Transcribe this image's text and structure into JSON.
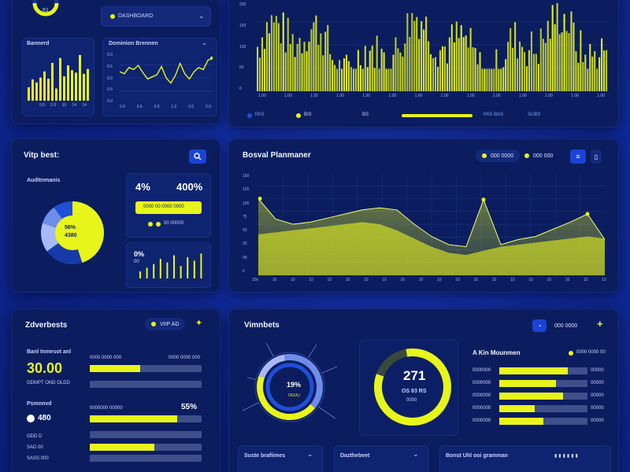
{
  "colors": {
    "accent": "#e8f51a",
    "panel": "#0b1d5e",
    "card": "#0e2470",
    "track": "#3e4f8a"
  },
  "top_left": {
    "gauge_value": "61",
    "dropdown_label": "DASHBOARD",
    "bar_card_title": "Bannerd",
    "bar_values": [
      22,
      35,
      30,
      38,
      48,
      36,
      62,
      20,
      70,
      40,
      58,
      50,
      46,
      75,
      44,
      52
    ],
    "bar_axis": [
      "0.0",
      "0.0",
      "10",
      "14",
      "14"
    ],
    "line_card_title": "Dominion Brennen",
    "line_axis_y": [
      "0.0",
      "0.5",
      "0.0",
      "0.5",
      "0.0"
    ],
    "line_axis_x": [
      "0.0",
      "0.5",
      "0.0",
      "1.0",
      "0.0",
      "0.0"
    ],
    "line_values": [
      62,
      58,
      70,
      66,
      74,
      60,
      48,
      52,
      56,
      72,
      50,
      40,
      55,
      78,
      58,
      48,
      62,
      70,
      66,
      84,
      88
    ]
  },
  "top_right": {
    "y_ticks": [
      "200",
      "150",
      "100",
      "50",
      "0"
    ],
    "x_ticks": [
      "1.00",
      "1.00",
      "1.00",
      "1.00",
      "1.00",
      "1.00",
      "1.00",
      "1.00",
      "1.00",
      "1.00",
      "1.00",
      "1.00",
      "1.00",
      "1.00"
    ],
    "footer_left": "PAS",
    "footer_mid_a": "BIS",
    "footer_mid_b": "BS",
    "footer_right": "PAS BAS",
    "footer_far_right": "SUBS"
  },
  "mid_left": {
    "title": "Vitp best:",
    "donut_title": "Auditnmanis",
    "donut_center_a": "56%",
    "donut_center_b": "4380",
    "donut_segments": [
      {
        "value": 45,
        "color": "#e8f51a"
      },
      {
        "value": 20,
        "color": "#163ba8"
      },
      {
        "value": 15,
        "color": "#a9b9f5"
      },
      {
        "value": 10,
        "color": "#6e8de8"
      },
      {
        "value": 10,
        "color": "#1f4fd9"
      }
    ],
    "stat_pct": "4%",
    "stat_value": "400%",
    "stat_bar_label": "0000 00 0000 0000",
    "stat_legend": "00 00000",
    "small_pct": "0%",
    "small_sub": "00",
    "small_bars": [
      8,
      12,
      16,
      22,
      18,
      26,
      14,
      24,
      20,
      28
    ]
  },
  "mid_right": {
    "title": "Bosval Planmaner",
    "chip_a": "000 0000",
    "chip_b": "000 000",
    "y_ticks": [
      "150",
      "125",
      "100",
      "75",
      "50",
      "25",
      "00",
      "0"
    ],
    "x_ticks": [
      "20s",
      "10",
      "10",
      "10",
      "10",
      "10",
      "10",
      "10",
      "10",
      "10",
      "10",
      "10",
      "10",
      "10",
      "10",
      "10",
      "10",
      "10",
      "10",
      "10"
    ],
    "series_a": [
      75,
      55,
      50,
      52,
      56,
      60,
      64,
      66,
      64,
      50,
      38,
      30,
      28,
      74,
      30,
      35,
      38,
      45,
      52,
      60,
      35
    ],
    "series_b": [
      40,
      42,
      44,
      46,
      48,
      50,
      52,
      50,
      44,
      36,
      28,
      22,
      20,
      24,
      28,
      30,
      32,
      34,
      36,
      38,
      36
    ]
  },
  "bottom_left": {
    "title": "Zdverbests",
    "badge": "VIIP AD",
    "label_1": "Banl Inmesot anl",
    "value_1": "30.00",
    "sub_1": "ODMPT OND OLDD",
    "bar_1a_label": "0000 0000 000",
    "bar_1b_label": "0000 0000 000",
    "label_2": "Psmnnvd",
    "value_2": "480",
    "bar_2_label": "0000000 00000",
    "pct_2": "55%",
    "bars": [
      {
        "fill": 0.45
      },
      {
        "fill": 0.0
      },
      {
        "fill": 0.78
      },
      {
        "fill": 0.0
      },
      {
        "fill": 0.58
      },
      {
        "fill": 0.0
      }
    ],
    "side_labels": [
      "ODD D",
      "SAD 00",
      "SASS 000"
    ]
  },
  "bottom_right": {
    "title": "Vimnbets",
    "chip": "000 0000",
    "ring_a_pct": "19%",
    "ring_a_sub": "OUUU",
    "ring_b_value": "271",
    "ring_b_sub1": "OS 83 RS",
    "ring_b_sub2": "0000",
    "list_title": "A Kin Mounmen",
    "list_legend": "0000 0000 00",
    "rows": [
      {
        "label": "0000000",
        "fill": 0.78,
        "value": "00000"
      },
      {
        "label": "0000000",
        "fill": 0.64,
        "value": "00000"
      },
      {
        "label": "0000000",
        "fill": 0.72,
        "value": "00000"
      },
      {
        "label": "0000000",
        "fill": 0.4,
        "value": "00000"
      },
      {
        "label": "0000000",
        "fill": 0.5,
        "value": "00000"
      }
    ],
    "footer_1": "Suste brafiimes",
    "footer_2": "Dazthebeet",
    "footer_3": "Bonst Uhl ooi gramman"
  }
}
